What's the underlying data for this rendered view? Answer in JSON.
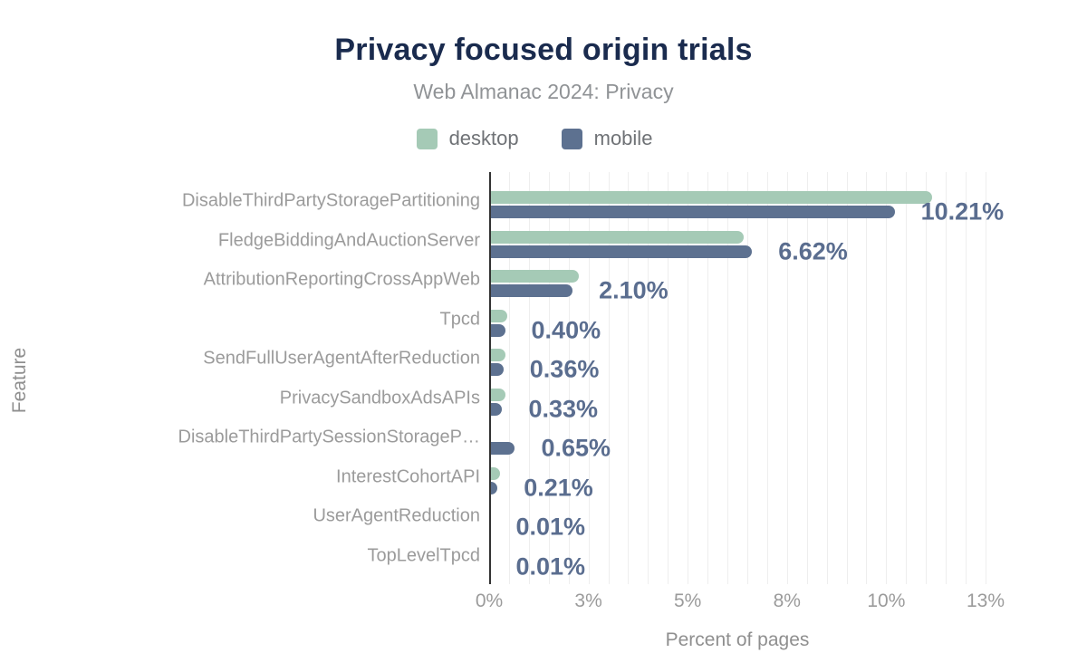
{
  "chart": {
    "title": "Privacy focused origin trials",
    "subtitle": "Web Almanac 2024: Privacy",
    "y_axis_title": "Feature",
    "x_axis_title": "Percent of pages",
    "colors": {
      "title": "#1a2b4e",
      "desktop": "#a5cab6",
      "mobile": "#5d7190",
      "data_label": "#5a6d8f",
      "axis_text": "#9b9b9b",
      "gridline": "#eeeeee"
    }
  },
  "chart_data": {
    "type": "bar",
    "orientation": "horizontal",
    "title": "Privacy focused origin trials",
    "subtitle": "Web Almanac 2024: Privacy",
    "xlabel": "Percent of pages",
    "ylabel": "Feature",
    "xlim": [
      0,
      12.5
    ],
    "grid_interval": 0.5,
    "legend_position": "top-center",
    "x_tick_positions": [
      0,
      2.5,
      5,
      7.5,
      10,
      12.5
    ],
    "x_tick_labels": [
      "0%",
      "3%",
      "5%",
      "8%",
      "10%",
      "13%"
    ],
    "categories": [
      "DisableThirdPartyStoragePartitioning",
      "FledgeBiddingAndAuctionServer",
      "AttributionReportingCrossAppWeb",
      "Tpcd",
      "SendFullUserAgentAfterReduction",
      "PrivacySandboxAdsAPIs",
      "DisableThirdPartySessionStorageP…",
      "InterestCohortAPI",
      "UserAgentReduction",
      "TopLevelTpcd"
    ],
    "series": [
      {
        "name": "desktop",
        "color": "#a5cab6",
        "values": [
          11.15,
          6.41,
          2.25,
          0.45,
          0.4,
          0.41,
          null,
          0.28,
          0.01,
          0.01
        ]
      },
      {
        "name": "mobile",
        "color": "#5d7190",
        "values": [
          10.21,
          6.62,
          2.1,
          0.4,
          0.36,
          0.33,
          0.65,
          0.21,
          0.01,
          0.01
        ]
      }
    ],
    "data_labels": [
      "10.21%",
      "6.62%",
      "2.10%",
      "0.40%",
      "0.36%",
      "0.33%",
      "0.65%",
      "0.21%",
      "0.01%",
      "0.01%"
    ]
  }
}
